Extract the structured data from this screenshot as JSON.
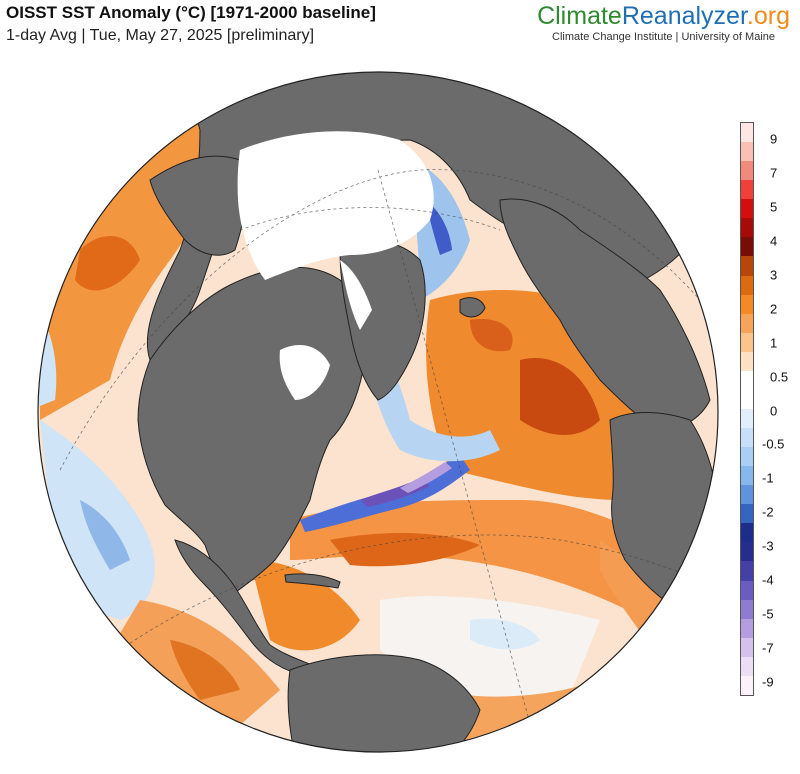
{
  "header": {
    "title": "OISST SST Anomaly (°C) [1971-2000 baseline]",
    "subtitle": "1-day Avg | Tue, May 27, 2025 [preliminary]"
  },
  "brand": {
    "name_part1": "Climate",
    "name_part2": "Reanalyzer",
    "name_part3": ".org",
    "subtitle": "Climate Change Institute | University of Maine",
    "colors": {
      "climate": "#2f8a2f",
      "reanalyzer": "#1f6fb4",
      "org": "#f08a1c"
    }
  },
  "map": {
    "projection": "orthographic",
    "land_color": "#6b6b6b",
    "sea_ice_color": "#ffffff"
  },
  "colorbar": {
    "labels": [
      "9",
      "7",
      "5",
      "4",
      "3",
      "2",
      "1",
      "0.5",
      "0",
      "-0.5",
      "-1",
      "-2",
      "-3",
      "-4",
      "-5",
      "-7",
      "-9"
    ],
    "colors": [
      "#fde6e4",
      "#f9c0b4",
      "#f28a7c",
      "#f04038",
      "#d40d0d",
      "#a80a0a",
      "#7a0c06",
      "#b8460a",
      "#de6a10",
      "#f58a24",
      "#f7a458",
      "#fac48c",
      "#fde2c4",
      "#ffffff",
      "#ffffff",
      "#e2eefb",
      "#c7dff7",
      "#a9cff4",
      "#86b8ee",
      "#5e93de",
      "#3565c2",
      "#1c2d8e",
      "#272d8f",
      "#4540a8",
      "#6a5cc0",
      "#8e7cd2",
      "#b49ee0",
      "#d4c1ec",
      "#ecdff5",
      "#fbf2fa"
    ]
  }
}
